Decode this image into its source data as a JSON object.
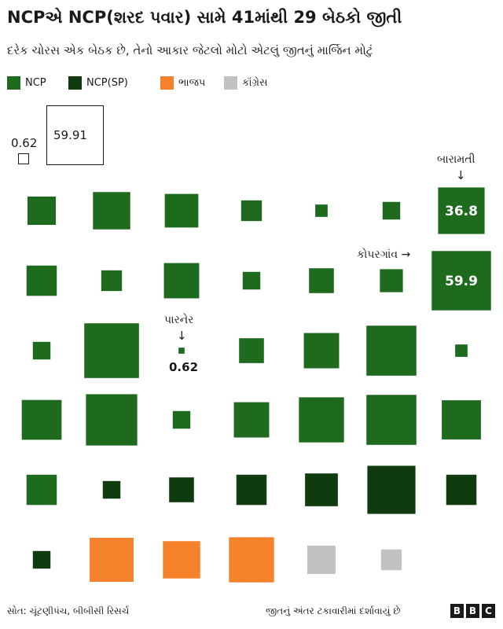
{
  "title": "NCPએ NCP(શરદ પવાર) સામે 41માંથી 29 બેઠકો જીતી",
  "subtitle": "દરેક ચોરસ એક બેઠક છે, તેનો આકાર જેટલો મોટો એટલું જીતનું માર્જિન મોટું",
  "legend": [
    {
      "label": "NCP",
      "color": "#1e6b1e"
    },
    {
      "label": "NCP(SP)",
      "color": "#0f3b0f"
    },
    {
      "label": "ભાજપ",
      "color": "#f5822a"
    },
    {
      "label": "કૉંગ્રેસ",
      "color": "#c2c2c2"
    }
  ],
  "scale": {
    "small_label": "0.62",
    "large_label": "59.91"
  },
  "annotations": {
    "baramati_label": "બારામતી",
    "baramati_value": "36.8",
    "kopargaon_label": "કોપરગાંવ",
    "kopargaon_value": "59.9",
    "parner_label": "પારનેર",
    "parner_value": "0.62"
  },
  "footer": {
    "source": "સોત: ચૂંટણીપંચ, બીબીસી રિસર્ચ",
    "note": "જીતનું અંતર ટકાવારીમાં દર્શાવાયું છે",
    "logo": [
      "B",
      "B",
      "C"
    ]
  },
  "chart_data": {
    "type": "proportional-squares",
    "unit": "percent margin",
    "parties": {
      "NCP": "#1e6b1e",
      "NCP(SP)": "#0f3b0f",
      "BJP": "#f5822a",
      "INC": "#c2c2c2"
    },
    "rows": [
      [
        {
          "party": "NCP",
          "margin": 13.7
        },
        {
          "party": "NCP",
          "margin": 23.7
        },
        {
          "party": "NCP",
          "margin": 19.2
        },
        {
          "party": "NCP",
          "margin": 7.3
        },
        {
          "party": "NCP",
          "margin": 2.6
        },
        {
          "party": "NCP",
          "margin": 5.3
        },
        {
          "party": "NCP",
          "margin": 36.8,
          "label": "Baramati"
        }
      ],
      [
        {
          "party": "NCP",
          "margin": 15.6
        },
        {
          "party": "NCP",
          "margin": 7.3
        },
        {
          "party": "NCP",
          "margin": 21.2
        },
        {
          "party": "NCP",
          "margin": 5.3
        },
        {
          "party": "NCP",
          "margin": 10.5
        },
        {
          "party": "NCP",
          "margin": 9.0
        },
        {
          "party": "NCP",
          "margin": 59.9,
          "label": "Kopargaon"
        }
      ],
      [
        {
          "party": "NCP",
          "margin": 5.3
        },
        {
          "party": "NCP",
          "margin": 51.0
        },
        {
          "party": "NCP",
          "margin": 0.62,
          "label": "Parner"
        },
        {
          "party": "NCP",
          "margin": 10.5
        },
        {
          "party": "NCP",
          "margin": 21.2
        },
        {
          "party": "NCP",
          "margin": 42.5
        },
        {
          "party": "NCP",
          "margin": 2.6
        }
      ],
      [
        {
          "party": "NCP",
          "margin": 27.0
        },
        {
          "party": "NCP",
          "margin": 44.8
        },
        {
          "party": "NCP",
          "margin": 5.3
        },
        {
          "party": "NCP",
          "margin": 21.2
        },
        {
          "party": "NCP",
          "margin": 34.6
        },
        {
          "party": "NCP",
          "margin": 42.5
        },
        {
          "party": "NCP",
          "margin": 26.1
        }
      ],
      [
        {
          "party": "NCP",
          "margin": 15.6
        },
        {
          "party": "NCP(SP)",
          "margin": 5.3
        },
        {
          "party": "NCP(SP)",
          "margin": 10.5
        },
        {
          "party": "NCP(SP)",
          "margin": 15.6
        },
        {
          "party": "NCP(SP)",
          "margin": 18.3
        },
        {
          "party": "NCP(SP)",
          "margin": 39.4
        },
        {
          "party": "NCP(SP)",
          "margin": 15.6
        }
      ],
      [
        {
          "party": "NCP(SP)",
          "margin": 5.3
        },
        {
          "party": "BJP",
          "margin": 32.9
        },
        {
          "party": "BJP",
          "margin": 23.7
        },
        {
          "party": "BJP",
          "margin": 34.6
        },
        {
          "party": "INC",
          "margin": 13.7
        },
        {
          "party": "INC",
          "margin": 7.3
        }
      ]
    ]
  }
}
